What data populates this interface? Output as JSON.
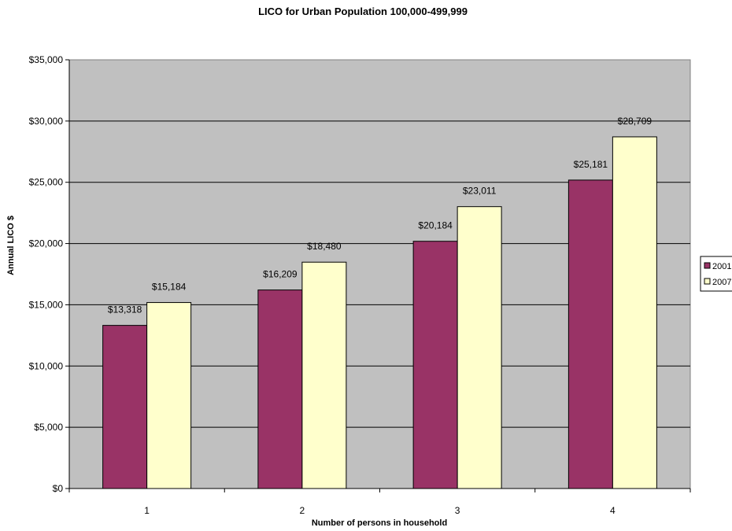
{
  "chart_data": {
    "type": "bar",
    "title": "LICO for Urban Population  100,000-499,999",
    "xlabel": "Number of persons in household",
    "ylabel": "Annual LICO $",
    "categories": [
      "1",
      "2",
      "3",
      "4"
    ],
    "series": [
      {
        "name": "2001",
        "values": [
          13318,
          16209,
          20184,
          25181
        ],
        "color": "#993366",
        "labels": [
          "$13,318",
          "$16,209",
          "$20,184",
          "$25,181"
        ]
      },
      {
        "name": "2007",
        "values": [
          15184,
          18480,
          23011,
          28709
        ],
        "color": "#ffffcc",
        "labels": [
          "$15,184",
          "$18,480",
          "$23,011",
          "$28,709"
        ]
      }
    ],
    "ylim": [
      0,
      35000
    ],
    "yticks": [
      0,
      5000,
      10000,
      15000,
      20000,
      25000,
      30000,
      35000
    ],
    "ytick_labels": [
      "$0",
      "$5,000",
      "$10,000",
      "$15,000",
      "$20,000",
      "$25,000",
      "$30,000",
      "$35,000"
    ],
    "grid": true,
    "plot_background": "#c0c0c0",
    "legend_position": "right"
  }
}
